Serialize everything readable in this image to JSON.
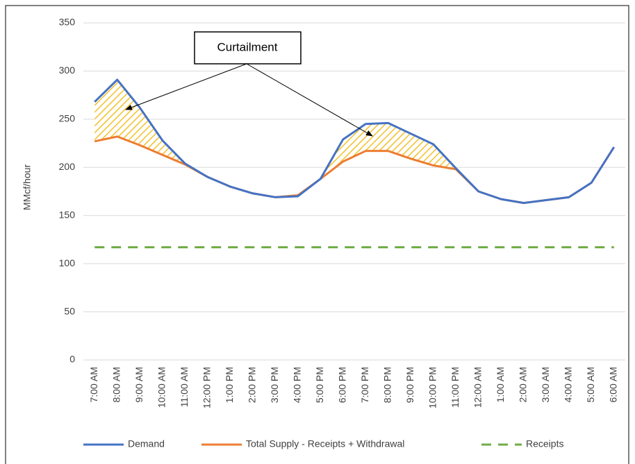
{
  "chart_data": {
    "type": "line",
    "y_label": "MMcf/hour",
    "annotation": "Curtailment",
    "categories": [
      "7:00 AM",
      "8:00 AM",
      "9:00 AM",
      "10:00 AM",
      "11:00 AM",
      "12:00 PM",
      "1:00 PM",
      "2:00 PM",
      "3:00 PM",
      "4:00 PM",
      "5:00 PM",
      "6:00 PM",
      "7:00 PM",
      "8:00 PM",
      "9:00 PM",
      "10:00 PM",
      "11:00 PM",
      "12:00 AM",
      "1:00 AM",
      "2:00 AM",
      "3:00 AM",
      "4:00 AM",
      "5:00 AM",
      "6:00 AM"
    ],
    "series": [
      {
        "name": "Demand",
        "color": "#4472c4",
        "values": [
          268,
          291,
          262,
          228,
          204,
          190,
          180,
          173,
          169,
          170,
          188,
          229,
          245,
          246,
          235,
          224,
          199,
          175,
          167,
          163,
          166,
          169,
          184,
          221
        ]
      },
      {
        "name": "Total Supply - Receipts + Withdrawal",
        "color": "#ed7d31",
        "values": [
          227,
          232,
          223,
          213,
          203,
          190,
          180,
          173,
          169,
          171,
          188,
          206,
          217,
          217,
          209,
          202,
          198,
          175,
          167,
          163,
          166,
          169,
          184,
          221
        ]
      },
      {
        "name": "Receipts",
        "color": "#70ad47",
        "dashed": true,
        "values": [
          117,
          117,
          117,
          117,
          117,
          117,
          117,
          117,
          117,
          117,
          117,
          117,
          117,
          117,
          117,
          117,
          117,
          117,
          117,
          117,
          117,
          117,
          117,
          117
        ]
      }
    ],
    "ylim": [
      0,
      350
    ],
    "yticks": [
      0,
      50,
      100,
      150,
      200,
      250,
      300,
      350
    ],
    "grid": true
  }
}
